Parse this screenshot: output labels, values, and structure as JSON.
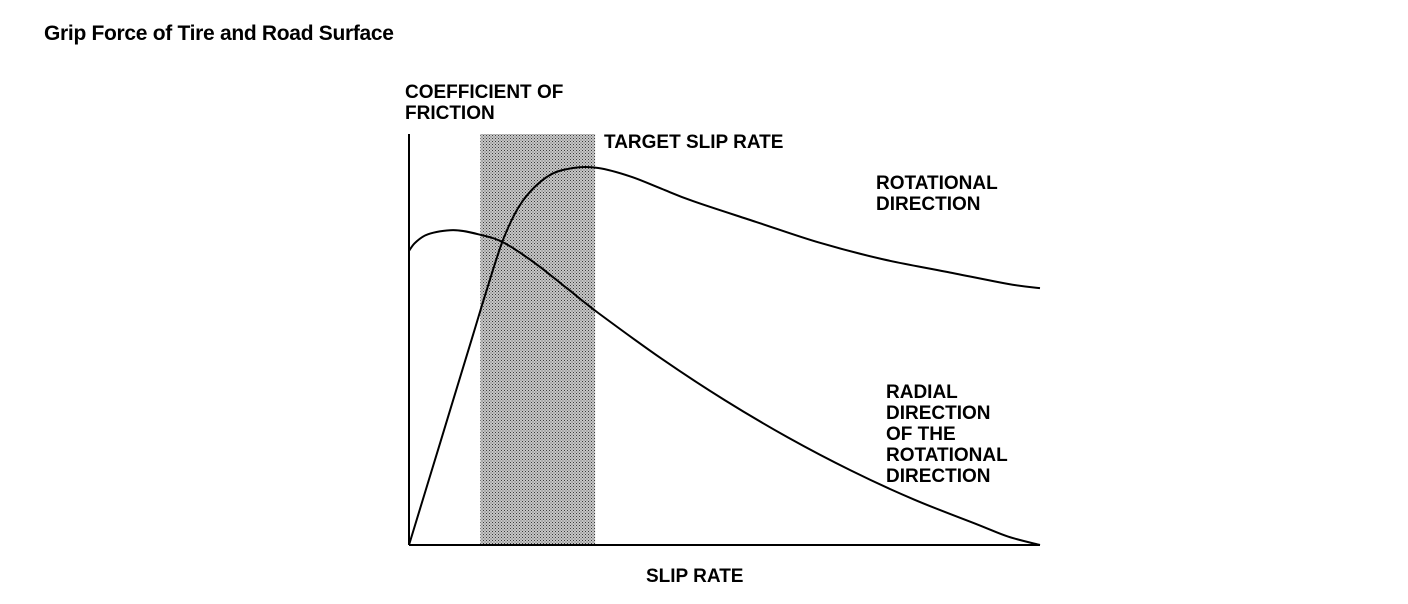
{
  "page": {
    "title": "Grip Force of Tire and Road Surface"
  },
  "chart_data": {
    "type": "line",
    "title": "Grip Force of Tire and Road Surface",
    "ylabel_lines": [
      "COEFFICIENT OF",
      "FRICTION"
    ],
    "xlabel": "SLIP RATE",
    "x_ticks": [],
    "y_ticks": [],
    "grid": false,
    "xlim": [
      0,
      1
    ],
    "ylim": [
      0,
      1
    ],
    "target_band": {
      "label": "TARGET SLIP RATE",
      "x_range": [
        0.113,
        0.295
      ]
    },
    "series": [
      {
        "name": "ROTATIONAL DIRECTION",
        "label_lines": [
          "ROTATIONAL",
          "DIRECTION"
        ],
        "x": [
          0.0,
          0.05,
          0.1,
          0.12,
          0.15,
          0.18,
          0.22,
          0.26,
          0.3,
          0.35,
          0.4,
          0.45,
          0.55,
          0.65,
          0.75,
          0.85,
          0.95,
          1.0
        ],
        "y": [
          0.0,
          0.25,
          0.5,
          0.6,
          0.74,
          0.83,
          0.89,
          0.91,
          0.91,
          0.89,
          0.86,
          0.83,
          0.78,
          0.73,
          0.69,
          0.66,
          0.63,
          0.62
        ]
      },
      {
        "name": "RADIAL DIRECTION OF THE ROTATIONAL DIRECTION",
        "label_lines": [
          "RADIAL",
          "DIRECTION",
          "OF THE",
          "ROTATIONAL",
          "DIRECTION"
        ],
        "x": [
          0.0,
          0.01,
          0.03,
          0.07,
          0.11,
          0.15,
          0.2,
          0.25,
          0.3,
          0.4,
          0.5,
          0.6,
          0.7,
          0.8,
          0.9,
          0.95,
          1.0
        ],
        "y": [
          0.71,
          0.73,
          0.75,
          0.76,
          0.75,
          0.73,
          0.68,
          0.62,
          0.56,
          0.45,
          0.35,
          0.26,
          0.18,
          0.11,
          0.05,
          0.02,
          0.0
        ]
      }
    ]
  }
}
